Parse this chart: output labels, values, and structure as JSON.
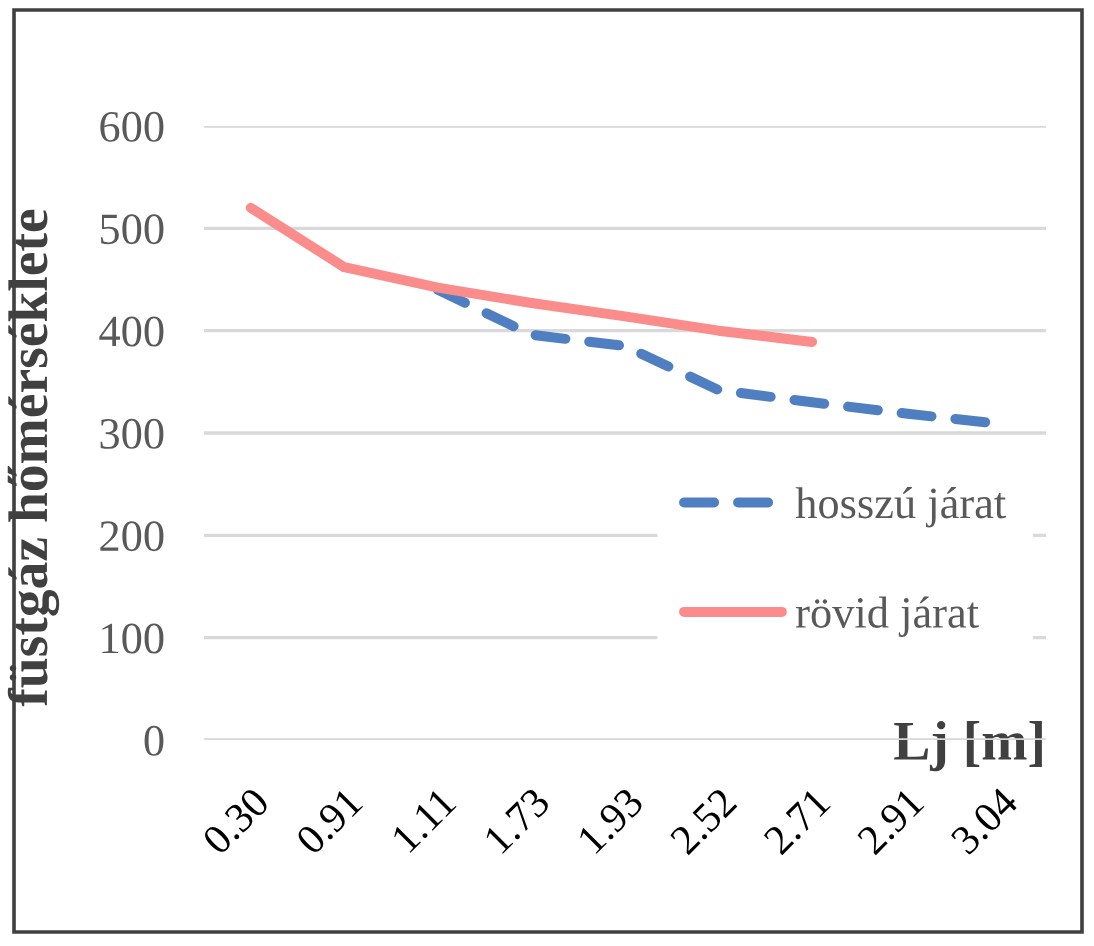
{
  "chart_data": {
    "type": "line",
    "xlabel": "Lj [m]",
    "ylabel": "füstgáz hőmérséklete",
    "categories": [
      "0.30",
      "0.91",
      "1.11",
      "1.73",
      "1.93",
      "2.52",
      "2.71",
      "2.91",
      "3.04"
    ],
    "series": [
      {
        "name": "hosszú járat",
        "color": "#4f7fc0",
        "line_style": "dashed",
        "values": [
          null,
          null,
          440,
          396,
          385,
          342,
          330,
          319,
          309
        ]
      },
      {
        "name": "rövid járat",
        "color": "#fa8c8c",
        "line_style": "solid",
        "values": [
          520,
          462,
          442,
          427,
          414,
          400,
          389,
          null,
          null
        ]
      }
    ],
    "ylim": [
      0,
      600
    ],
    "yticks": [
      0,
      100,
      200,
      300,
      400,
      500,
      600
    ],
    "grid": "y",
    "legend": "lower right"
  }
}
